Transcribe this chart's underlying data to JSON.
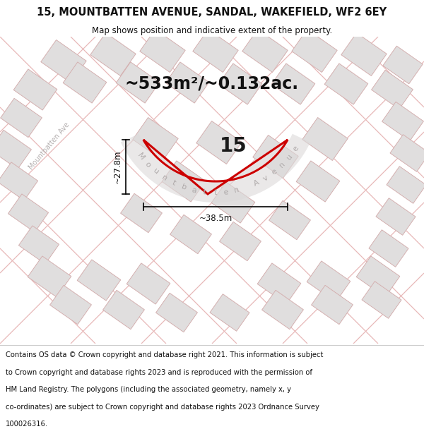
{
  "title_line1": "15, MOUNTBATTEN AVENUE, SANDAL, WAKEFIELD, WF2 6EY",
  "title_line2": "Map shows position and indicative extent of the property.",
  "area_label": "~533m²/~0.132ac.",
  "plot_number": "15",
  "dim_width": "~38.5m",
  "dim_height": "~27.8m",
  "street_label": "Mountbatten Avenue",
  "street_label_left": "Mountbatten Ave",
  "footer_lines": [
    "Contains OS data © Crown copyright and database right 2021. This information is subject",
    "to Crown copyright and database rights 2023 and is reproduced with the permission of",
    "HM Land Registry. The polygons (including the associated geometry, namely x, y",
    "co-ordinates) are subject to Crown copyright and database rights 2023 Ordnance Survey",
    "100026316."
  ],
  "plot_edge_color": "#cc0000",
  "plot_fill": "#e6e2e2",
  "road_line_color": "#e8b8b8",
  "building_fill": "#e0dede",
  "building_edge_color": "#d4b0b0",
  "map_bg": "#f0eeee",
  "title_fontsize": 10.5,
  "subtitle_fontsize": 8.5,
  "area_fontsize": 17,
  "dim_fontsize": 8.5,
  "plot_num_fontsize": 20,
  "street_fontsize": 8,
  "footer_fontsize": 7.2
}
